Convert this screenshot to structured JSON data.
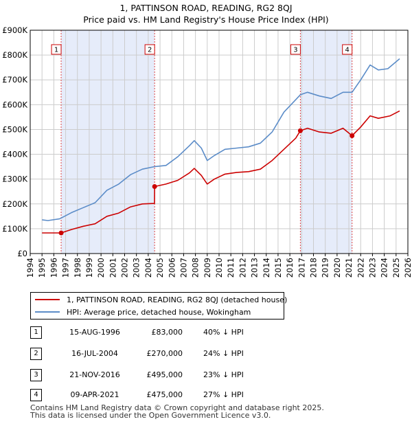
{
  "chart_data": {
    "type": "line",
    "title": "1, PATTINSON ROAD, READING, RG2 8QJ",
    "subtitle": "Price paid vs. HM Land Registry's House Price Index (HPI)",
    "xlabel": "",
    "ylabel": "",
    "xlim": [
      1994,
      2026
    ],
    "ylim": [
      0,
      900000
    ],
    "x_ticks": [
      "1994",
      "1995",
      "1996",
      "1997",
      "1998",
      "1999",
      "2000",
      "2001",
      "2002",
      "2003",
      "2004",
      "2005",
      "2006",
      "2007",
      "2008",
      "2009",
      "2010",
      "2011",
      "2012",
      "2013",
      "2014",
      "2015",
      "2016",
      "2017",
      "2018",
      "2019",
      "2020",
      "2021",
      "2022",
      "2023",
      "2024",
      "2025",
      "2026"
    ],
    "y_ticks": [
      {
        "value": 0,
        "label": "£0"
      },
      {
        "value": 100000,
        "label": "£100K"
      },
      {
        "value": 200000,
        "label": "£200K"
      },
      {
        "value": 300000,
        "label": "£300K"
      },
      {
        "value": 400000,
        "label": "£400K"
      },
      {
        "value": 500000,
        "label": "£500K"
      },
      {
        "value": 600000,
        "label": "£600K"
      },
      {
        "value": 700000,
        "label": "£700K"
      },
      {
        "value": 800000,
        "label": "£800K"
      },
      {
        "value": 900000,
        "label": "£900K"
      }
    ],
    "grid": true,
    "shaded_ranges": [
      [
        1996.62,
        2004.54
      ],
      [
        2016.89,
        2021.27
      ]
    ],
    "series": [
      {
        "name": "1, PATTINSON ROAD, READING, RG2 8QJ (detached house)",
        "color": "#cc0000",
        "points": [
          [
            1995.0,
            83000
          ],
          [
            1996.62,
            83000
          ],
          [
            1997.5,
            97000
          ],
          [
            1998.5,
            110000
          ],
          [
            1999.5,
            120000
          ],
          [
            2000.5,
            150000
          ],
          [
            2001.5,
            163000
          ],
          [
            2002.5,
            188000
          ],
          [
            2003.5,
            200000
          ],
          [
            2004.53,
            202000
          ],
          [
            2004.54,
            270000
          ],
          [
            2005.5,
            280000
          ],
          [
            2006.5,
            295000
          ],
          [
            2007.5,
            325000
          ],
          [
            2007.9,
            343000
          ],
          [
            2008.5,
            315000
          ],
          [
            2009.0,
            280000
          ],
          [
            2009.6,
            300000
          ],
          [
            2010.5,
            320000
          ],
          [
            2011.5,
            327000
          ],
          [
            2012.5,
            330000
          ],
          [
            2013.5,
            340000
          ],
          [
            2014.5,
            375000
          ],
          [
            2015.5,
            420000
          ],
          [
            2016.5,
            465000
          ],
          [
            2016.89,
            495000
          ],
          [
            2017.5,
            505000
          ],
          [
            2018.5,
            490000
          ],
          [
            2019.5,
            485000
          ],
          [
            2020.5,
            505000
          ],
          [
            2021.27,
            475000
          ],
          [
            2022.0,
            510000
          ],
          [
            2022.8,
            555000
          ],
          [
            2023.5,
            545000
          ],
          [
            2024.5,
            555000
          ],
          [
            2025.3,
            575000
          ]
        ]
      },
      {
        "name": "HPI: Average price, detached house, Wokingham",
        "color": "#5b8cc8",
        "points": [
          [
            1995.0,
            136000
          ],
          [
            1995.5,
            133000
          ],
          [
            1996.5,
            140000
          ],
          [
            1997.5,
            165000
          ],
          [
            1998.5,
            185000
          ],
          [
            1999.5,
            205000
          ],
          [
            2000.5,
            255000
          ],
          [
            2001.5,
            280000
          ],
          [
            2002.5,
            318000
          ],
          [
            2003.5,
            340000
          ],
          [
            2004.5,
            350000
          ],
          [
            2005.5,
            355000
          ],
          [
            2006.5,
            390000
          ],
          [
            2007.5,
            435000
          ],
          [
            2007.9,
            455000
          ],
          [
            2008.5,
            425000
          ],
          [
            2009.0,
            375000
          ],
          [
            2009.6,
            395000
          ],
          [
            2010.5,
            420000
          ],
          [
            2011.5,
            425000
          ],
          [
            2012.5,
            430000
          ],
          [
            2013.5,
            445000
          ],
          [
            2014.5,
            490000
          ],
          [
            2015.5,
            570000
          ],
          [
            2016.5,
            620000
          ],
          [
            2016.89,
            640000
          ],
          [
            2017.5,
            650000
          ],
          [
            2018.5,
            635000
          ],
          [
            2019.5,
            625000
          ],
          [
            2020.5,
            650000
          ],
          [
            2021.27,
            650000
          ],
          [
            2022.0,
            700000
          ],
          [
            2022.8,
            760000
          ],
          [
            2023.5,
            740000
          ],
          [
            2024.3,
            745000
          ],
          [
            2025.3,
            785000
          ]
        ]
      }
    ],
    "sales": [
      {
        "num": "1",
        "date": "15-AUG-1996",
        "x": 1996.62,
        "price_value": 83000,
        "price": "£83,000",
        "hpi": "40% ↓ HPI"
      },
      {
        "num": "2",
        "date": "16-JUL-2004",
        "x": 2004.54,
        "price_value": 270000,
        "price": "£270,000",
        "hpi": "24% ↓ HPI"
      },
      {
        "num": "3",
        "date": "21-NOV-2016",
        "x": 2016.89,
        "price_value": 495000,
        "price": "£495,000",
        "hpi": "23% ↓ HPI"
      },
      {
        "num": "4",
        "date": "09-APR-2021",
        "x": 2021.27,
        "price_value": 475000,
        "price": "£475,000",
        "hpi": "27% ↓ HPI"
      }
    ]
  },
  "legend": {
    "property_label": "1, PATTINSON ROAD, READING, RG2 8QJ (detached house)",
    "hpi_label": "HPI: Average price, detached house, Wokingham"
  },
  "footer": {
    "line1": "Contains HM Land Registry data © Crown copyright and database right 2025.",
    "line2": "This data is licensed under the Open Government Licence v3.0."
  }
}
